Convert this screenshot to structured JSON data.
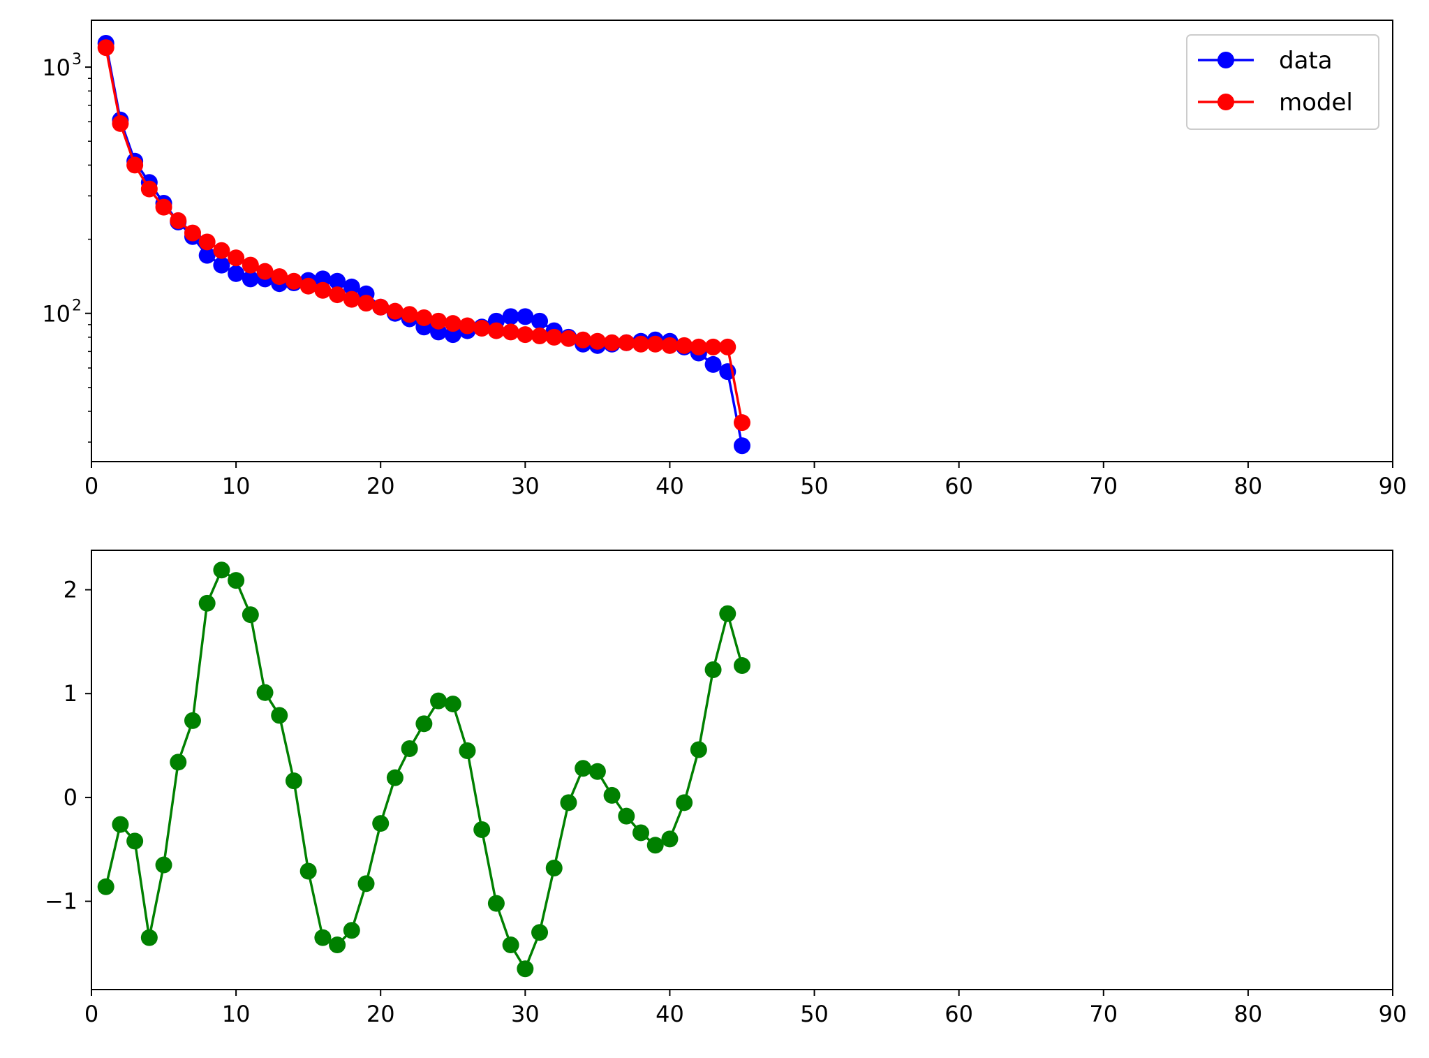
{
  "chart_data": [
    {
      "type": "line",
      "title": "",
      "xlabel": "",
      "ylabel": "",
      "yscale": "log",
      "xlim": [
        0,
        90
      ],
      "ylim": [
        25,
        1550
      ],
      "x_ticks": [
        0,
        10,
        20,
        30,
        40,
        50,
        60,
        70,
        80,
        90
      ],
      "y_ticks": [
        100,
        1000
      ],
      "y_tick_labels": [
        {
          "base": "10",
          "exp": "2"
        },
        {
          "base": "10",
          "exp": "3"
        }
      ],
      "grid": false,
      "legend": "top-right",
      "x": [
        1,
        2,
        3,
        4,
        5,
        6,
        7,
        8,
        9,
        10,
        11,
        12,
        13,
        14,
        15,
        16,
        17,
        18,
        19,
        20,
        21,
        22,
        23,
        24,
        25,
        26,
        27,
        28,
        29,
        30,
        31,
        32,
        33,
        34,
        35,
        36,
        37,
        38,
        39,
        40,
        41,
        42,
        43,
        44,
        45
      ],
      "series": [
        {
          "name": "data",
          "color": "#0000ff",
          "values": [
            1250,
            610,
            415,
            340,
            280,
            235,
            205,
            172,
            157,
            145,
            138,
            138,
            132,
            133,
            136,
            138,
            135,
            128,
            120,
            106,
            100,
            95,
            88,
            84,
            82,
            85,
            88,
            93,
            97,
            97,
            93,
            85,
            80,
            75,
            74,
            75,
            76,
            77,
            78,
            77,
            73,
            69,
            62,
            58,
            29
          ]
        },
        {
          "name": "model",
          "color": "#ff0000",
          "values": [
            1200,
            590,
            400,
            320,
            270,
            238,
            212,
            195,
            180,
            168,
            157,
            148,
            141,
            135,
            129,
            124,
            119,
            114,
            110,
            106,
            102,
            99,
            96,
            93,
            91,
            89,
            87,
            85,
            84,
            82,
            81,
            80,
            79,
            78,
            77,
            76,
            76,
            75,
            75,
            74,
            74,
            73,
            73,
            73,
            36
          ]
        }
      ]
    },
    {
      "type": "line",
      "title": "",
      "xlabel": "",
      "ylabel": "",
      "xlim": [
        0,
        90
      ],
      "ylim": [
        -1.85,
        2.38
      ],
      "x_ticks": [
        0,
        10,
        20,
        30,
        40,
        50,
        60,
        70,
        80,
        90
      ],
      "y_ticks": [
        -1,
        0,
        1,
        2
      ],
      "y_tick_labels": [
        "−1",
        "0",
        "1",
        "2"
      ],
      "grid": false,
      "x": [
        1,
        2,
        3,
        4,
        5,
        6,
        7,
        8,
        9,
        10,
        11,
        12,
        13,
        14,
        15,
        16,
        17,
        18,
        19,
        20,
        21,
        22,
        23,
        24,
        25,
        26,
        27,
        28,
        29,
        30,
        31,
        32,
        33,
        34,
        35,
        36,
        37,
        38,
        39,
        40,
        41,
        42,
        43,
        44,
        45
      ],
      "series": [
        {
          "color": "#008000",
          "values": [
            -0.86,
            -0.26,
            -0.42,
            -1.35,
            -0.65,
            0.34,
            0.74,
            1.87,
            2.19,
            2.09,
            1.76,
            1.01,
            0.79,
            0.16,
            -0.71,
            -1.35,
            -1.42,
            -1.28,
            -0.83,
            -0.25,
            0.19,
            0.47,
            0.71,
            0.93,
            0.9,
            0.45,
            -0.31,
            -1.02,
            -1.42,
            -1.65,
            -1.3,
            -0.68,
            -0.05,
            0.28,
            0.25,
            0.02,
            -0.18,
            -0.34,
            -0.46,
            -0.4,
            -0.05,
            0.46,
            1.23,
            1.77,
            1.27
          ]
        }
      ]
    }
  ]
}
